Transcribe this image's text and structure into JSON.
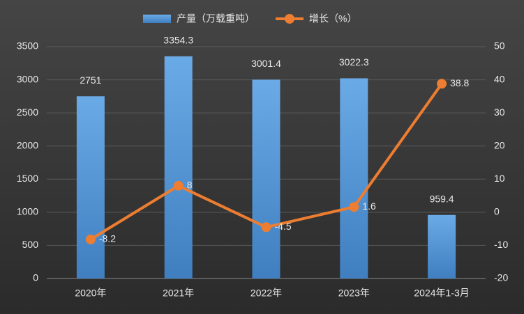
{
  "chart_data": {
    "type": "bar",
    "categories": [
      "2020年",
      "2021年",
      "2022年",
      "2023年",
      "2024年1-3月"
    ],
    "series": [
      {
        "name": "产量（万载重吨）",
        "type": "bar",
        "color": "#5b9bd5",
        "values": [
          2751,
          3354.3,
          3001.4,
          3022.3,
          959.4
        ]
      },
      {
        "name": "增长（%）",
        "type": "line",
        "axis": "y2",
        "color": "#ed7d31",
        "values": [
          -8.2,
          8,
          -4.5,
          1.6,
          38.8
        ]
      }
    ],
    "ylim": [
      0,
      3500
    ],
    "yticks": [
      0,
      500,
      1000,
      1500,
      2000,
      2500,
      3000,
      3500
    ],
    "y2lim": [
      -20,
      50
    ],
    "y2ticks": [
      -20,
      -10,
      0,
      10,
      20,
      30,
      40,
      50
    ],
    "grid": true
  }
}
